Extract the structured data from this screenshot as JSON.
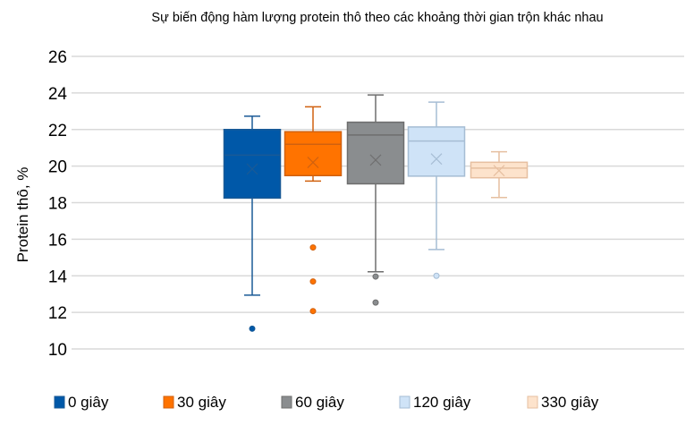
{
  "chart_data": {
    "type": "boxplot",
    "title": "Sự biến động hàm lượng protein thô theo các khoảng thời gian trộn khác nhau",
    "xlabel": "",
    "ylabel": "Protein thô, %",
    "ylim": [
      10,
      26
    ],
    "yticks": [
      10,
      12,
      14,
      16,
      18,
      20,
      22,
      24,
      26
    ],
    "grid": true,
    "legend_position": "bottom",
    "series": [
      {
        "name": "0 giây",
        "fill": "#0058a8",
        "stroke": "#1a5a96",
        "whisker_high": 22.73,
        "q3": 22.0,
        "median": 20.6,
        "mean": 19.84,
        "q1": 18.25,
        "whisker_low": 12.94,
        "outliers": [
          11.11
        ]
      },
      {
        "name": "30 giây",
        "fill": "#ff7300",
        "stroke": "#d0610f",
        "whisker_high": 23.24,
        "q3": 21.88,
        "median": 21.19,
        "mean": 20.2,
        "q1": 19.48,
        "whisker_low": 19.18,
        "outliers": [
          15.55,
          13.69,
          12.07
        ]
      },
      {
        "name": "60 giây",
        "fill": "#8a8d8f",
        "stroke": "#6e6e6e",
        "whisker_high": 23.89,
        "q3": 22.4,
        "median": 21.7,
        "mean": 20.33,
        "q1": 19.03,
        "whisker_low": 14.22,
        "outliers": [
          13.96,
          12.54
        ]
      },
      {
        "name": "120 giây",
        "fill": "#cfe3f7",
        "stroke": "#a6bdd4",
        "whisker_high": 23.5,
        "q3": 22.14,
        "median": 21.37,
        "mean": 20.39,
        "q1": 19.45,
        "whisker_low": 15.44,
        "outliers": [
          14.0
        ]
      },
      {
        "name": "330 giây",
        "fill": "#fde3cc",
        "stroke": "#e6bfa0",
        "whisker_high": 20.78,
        "q3": 20.21,
        "median": 19.89,
        "mean": 19.75,
        "q1": 19.36,
        "whisker_low": 18.28,
        "outliers": []
      }
    ]
  }
}
